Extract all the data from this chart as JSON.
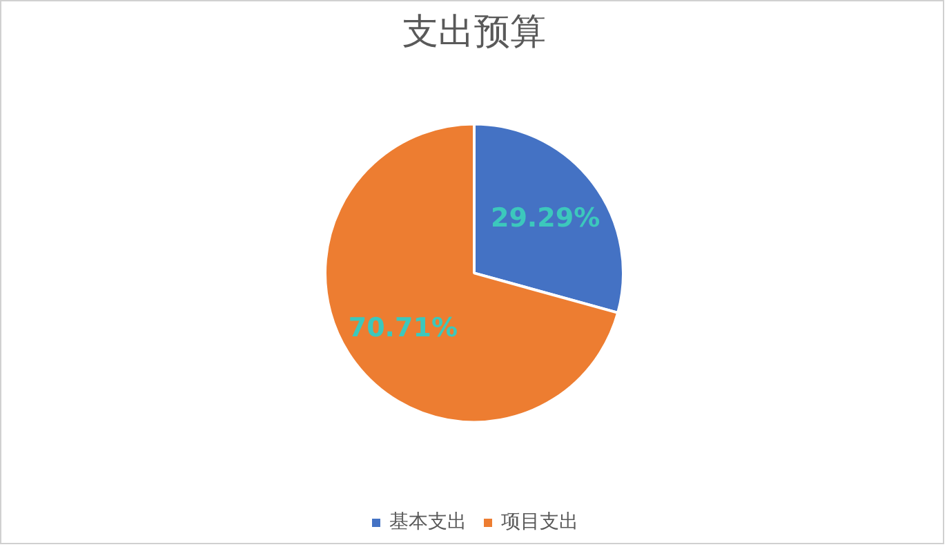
{
  "chart_data": {
    "type": "pie",
    "title": "支出预算",
    "categories": [
      "基本支出",
      "项目支出"
    ],
    "values": [
      29.29,
      70.71
    ],
    "colors": [
      "#4472c4",
      "#ed7d31"
    ],
    "value_labels": [
      "29.29%",
      "70.71%"
    ],
    "legend": "bottom"
  }
}
